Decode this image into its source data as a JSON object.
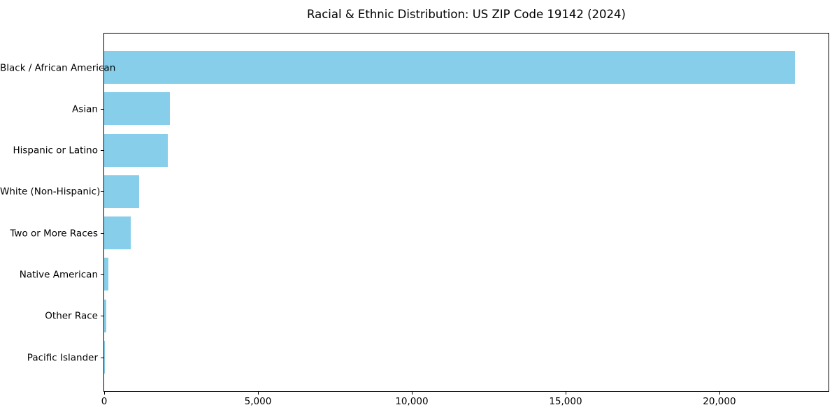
{
  "figure": {
    "background_color": "#ffffff",
    "frame_color": "#000000"
  },
  "chart_data": {
    "type": "bar",
    "orientation": "horizontal",
    "title": "Racial & Ethnic Distribution: US ZIP Code 19142 (2024)",
    "xlabel": "",
    "ylabel": "",
    "categories": [
      "Black / African American",
      "Asian",
      "Hispanic or Latino",
      "White (Non-Hispanic)",
      "Two or More Races",
      "Native American",
      "Other Race",
      "Pacific Islander"
    ],
    "values": [
      22450,
      2140,
      2070,
      1140,
      870,
      140,
      60,
      10
    ],
    "xlim": [
      0,
      23570
    ],
    "xticks": [
      0,
      5000,
      10000,
      15000,
      20000
    ],
    "xtick_labels": [
      "0",
      "5,000",
      "10,000",
      "15,000",
      "20,000"
    ],
    "bar_color": "#87CEEB",
    "grid": false,
    "legend_position": "none"
  }
}
